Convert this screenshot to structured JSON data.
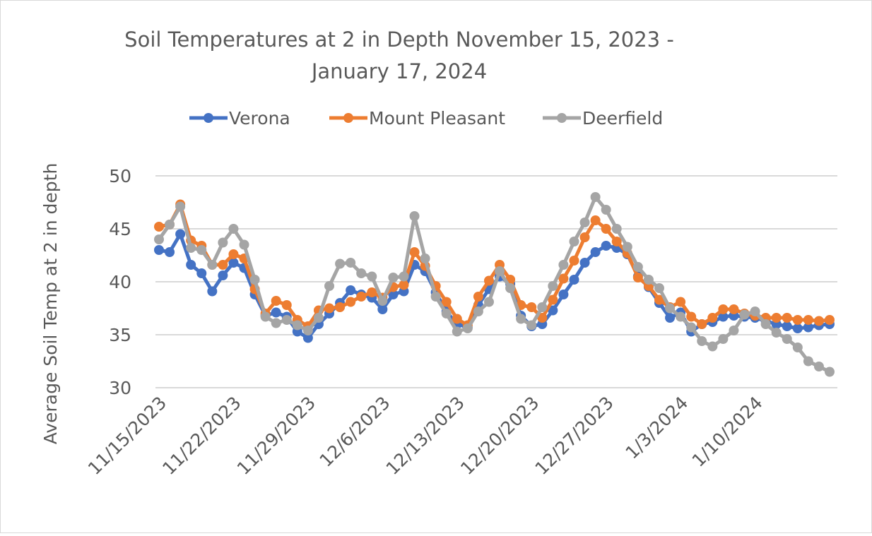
{
  "chart_data": {
    "type": "line",
    "title_lines": [
      "Soil Temperatures at 2 in Depth November 15, 2023 -",
      "January 17, 2024"
    ],
    "xlabel": "",
    "ylabel": "Average Soil Temp at 2 in depth",
    "ylim": [
      30,
      50
    ],
    "yticks": [
      "30",
      "35",
      "40",
      "45",
      "50"
    ],
    "ytick_values": [
      30,
      35,
      40,
      45,
      50
    ],
    "grid": "horizontal",
    "legend_position": "top",
    "x": [
      "11/15/2023",
      "11/16/2023",
      "11/17/2023",
      "11/18/2023",
      "11/19/2023",
      "11/20/2023",
      "11/21/2023",
      "11/22/2023",
      "11/23/2023",
      "11/24/2023",
      "11/25/2023",
      "11/26/2023",
      "11/27/2023",
      "11/28/2023",
      "11/29/2023",
      "11/30/2023",
      "12/1/2023",
      "12/2/2023",
      "12/3/2023",
      "12/4/2023",
      "12/5/2023",
      "12/6/2023",
      "12/7/2023",
      "12/8/2023",
      "12/9/2023",
      "12/10/2023",
      "12/11/2023",
      "12/12/2023",
      "12/13/2023",
      "12/14/2023",
      "12/15/2023",
      "12/16/2023",
      "12/17/2023",
      "12/18/2023",
      "12/19/2023",
      "12/20/2023",
      "12/21/2023",
      "12/22/2023",
      "12/23/2023",
      "12/24/2023",
      "12/25/2023",
      "12/26/2023",
      "12/27/2023",
      "12/28/2023",
      "12/29/2023",
      "12/30/2023",
      "12/31/2023",
      "1/1/2024",
      "1/2/2024",
      "1/3/2024",
      "1/4/2024",
      "1/5/2024",
      "1/6/2024",
      "1/7/2024",
      "1/8/2024",
      "1/9/2024",
      "1/10/2024",
      "1/11/2024",
      "1/12/2024",
      "1/13/2024",
      "1/14/2024",
      "1/15/2024",
      "1/16/2024",
      "1/17/2024"
    ],
    "xticks": [
      "11/15/2023",
      "11/22/2023",
      "11/29/2023",
      "12/6/2023",
      "12/13/2023",
      "12/20/2023",
      "12/27/2023",
      "1/3/2024",
      "1/10/2024"
    ],
    "series": [
      {
        "name": "Verona",
        "color": "#4472C4",
        "values": [
          43.0,
          42.8,
          44.5,
          41.6,
          40.8,
          39.1,
          40.6,
          41.8,
          41.3,
          38.8,
          36.8,
          37.1,
          36.7,
          35.3,
          34.7,
          36.0,
          37.0,
          38.0,
          39.2,
          38.8,
          38.5,
          37.4,
          38.8,
          39.1,
          41.6,
          41.0,
          39.0,
          37.2,
          36.0,
          35.7,
          37.8,
          39.3,
          40.5,
          39.8,
          36.8,
          35.8,
          36.0,
          37.3,
          38.8,
          40.2,
          41.8,
          42.8,
          43.4,
          43.2,
          42.6,
          40.5,
          39.5,
          38.0,
          36.6,
          37.1,
          35.3,
          36.0,
          36.2,
          36.7,
          36.8,
          36.7,
          36.6,
          36.3,
          36.0,
          35.8,
          35.6,
          35.7,
          35.9,
          36.0
        ]
      },
      {
        "name": "Mount Pleasant",
        "color": "#ED7D31",
        "values": [
          45.2,
          45.4,
          47.3,
          43.9,
          43.4,
          41.6,
          41.6,
          42.6,
          42.2,
          39.3,
          37.0,
          38.2,
          37.8,
          36.4,
          35.8,
          37.3,
          37.5,
          37.6,
          38.1,
          38.6,
          39.0,
          38.5,
          39.5,
          39.7,
          42.8,
          41.5,
          39.6,
          38.1,
          36.5,
          35.9,
          38.6,
          40.1,
          41.6,
          40.2,
          37.8,
          37.6,
          36.6,
          38.3,
          40.3,
          42.0,
          44.2,
          45.8,
          45.0,
          43.8,
          42.7,
          40.4,
          39.6,
          38.3,
          37.6,
          38.1,
          36.7,
          36.0,
          36.6,
          37.4,
          37.4,
          37.0,
          36.8,
          36.6,
          36.6,
          36.6,
          36.4,
          36.4,
          36.3,
          36.4
        ]
      },
      {
        "name": "Deerfield",
        "color": "#A5A5A5",
        "values": [
          44.0,
          45.4,
          47.1,
          43.2,
          43.0,
          41.6,
          43.7,
          45.0,
          43.5,
          40.2,
          36.7,
          36.1,
          36.4,
          35.9,
          35.4,
          36.6,
          39.6,
          41.7,
          41.8,
          40.8,
          40.5,
          38.2,
          40.4,
          40.5,
          46.2,
          42.2,
          38.6,
          37.0,
          35.3,
          35.6,
          37.2,
          38.1,
          41.0,
          39.4,
          36.5,
          35.9,
          37.6,
          39.6,
          41.6,
          43.8,
          45.6,
          48.0,
          46.8,
          45.0,
          43.3,
          41.4,
          40.2,
          39.4,
          37.5,
          36.7,
          35.7,
          34.4,
          33.9,
          34.6,
          35.4,
          36.9,
          37.2,
          36.0,
          35.2,
          34.6,
          33.8,
          32.5,
          32.0,
          31.5
        ]
      }
    ]
  }
}
